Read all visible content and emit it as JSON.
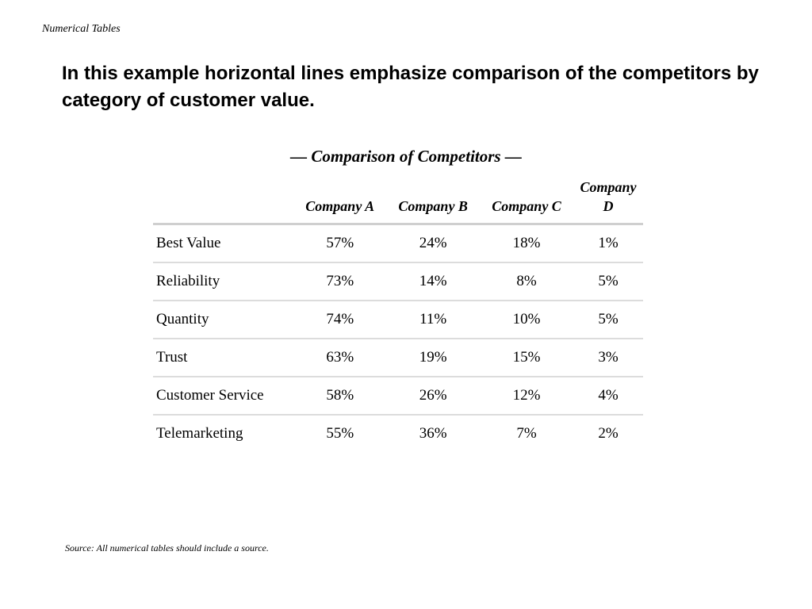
{
  "header": {
    "section_label": "Numerical Tables"
  },
  "headline": "In this example horizontal lines emphasize comparison of the competitors by category of customer value.",
  "table": {
    "title": "— Comparison of Competitors —",
    "columns": [
      "",
      "Company A",
      "Company B",
      "Company C",
      "Company D"
    ],
    "rows": [
      {
        "label": "Best Value",
        "values": [
          "57%",
          "24%",
          "18%",
          "1%"
        ]
      },
      {
        "label": "Reliability",
        "values": [
          "73%",
          "14%",
          "8%",
          "5%"
        ]
      },
      {
        "label": "Quantity",
        "values": [
          "74%",
          "11%",
          "10%",
          "5%"
        ]
      },
      {
        "label": "Trust",
        "values": [
          "63%",
          "19%",
          "15%",
          "3%"
        ]
      },
      {
        "label": "Customer Service",
        "values": [
          "58%",
          "26%",
          "12%",
          "4%"
        ]
      },
      {
        "label": "Telemarketing",
        "values": [
          "55%",
          "36%",
          "7%",
          "2%"
        ]
      }
    ]
  },
  "footer": {
    "source": "Source: All numerical tables should include a source."
  }
}
